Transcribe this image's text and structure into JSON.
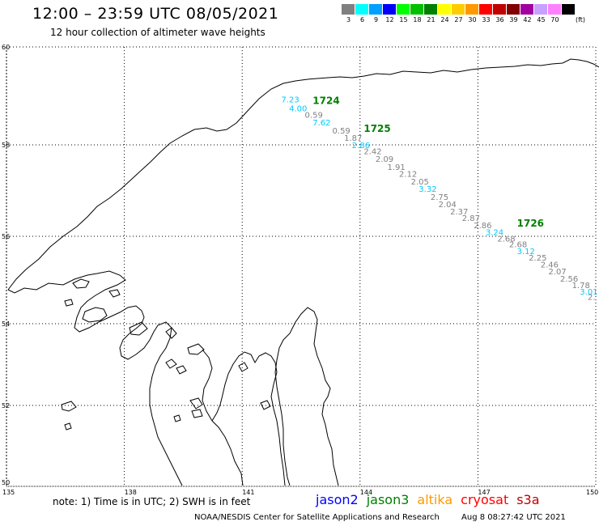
{
  "header": {
    "title": "12:00 – 23:59 UTC 08/05/2021",
    "subtitle": "12 hour collection of altimeter wave heights"
  },
  "legend_scale": {
    "unit": "(ft)",
    "bins": [
      {
        "label": "3",
        "color": "#808080"
      },
      {
        "label": "6",
        "color": "#00ffff"
      },
      {
        "label": "9",
        "color": "#00a0ff"
      },
      {
        "label": "12",
        "color": "#0000ff"
      },
      {
        "label": "15",
        "color": "#00ff00"
      },
      {
        "label": "18",
        "color": "#00c000"
      },
      {
        "label": "21",
        "color": "#008000"
      },
      {
        "label": "24",
        "color": "#ffff00"
      },
      {
        "label": "27",
        "color": "#ffcc00"
      },
      {
        "label": "30",
        "color": "#ff9900"
      },
      {
        "label": "33",
        "color": "#ff0000"
      },
      {
        "label": "36",
        "color": "#c00000"
      },
      {
        "label": "39",
        "color": "#800000"
      },
      {
        "label": "42",
        "color": "#a000a0"
      },
      {
        "label": "45",
        "color": "#c8a0ff"
      },
      {
        "label": "70",
        "color": "#ff80ff"
      },
      {
        "label": "",
        "color": "#000000"
      }
    ]
  },
  "map": {
    "lon_labels": [
      "135",
      "138",
      "141",
      "144",
      "147",
      "150"
    ],
    "lat_labels": [
      "60",
      "58",
      "56",
      "54",
      "52",
      "50"
    ],
    "pass_labels": [
      {
        "text": "1724",
        "lon": 143.0,
        "lat": 58.92,
        "color": "#008000"
      },
      {
        "text": "1725",
        "lon": 144.3,
        "lat": 58.35,
        "color": "#008000"
      },
      {
        "text": "1726",
        "lon": 148.2,
        "lat": 56.3,
        "color": "#008000"
      }
    ],
    "observations": [
      {
        "value": "7.23",
        "lon": 142.2,
        "lat": 58.93,
        "color": "#00c8ff"
      },
      {
        "value": "4.00",
        "lon": 142.4,
        "lat": 58.75,
        "color": "#00c8ff"
      },
      {
        "value": "0.59",
        "lon": 142.8,
        "lat": 58.62,
        "color": "#808080"
      },
      {
        "value": "7.62",
        "lon": 143.0,
        "lat": 58.46,
        "color": "#00c8ff"
      },
      {
        "value": "0.59",
        "lon": 143.5,
        "lat": 58.3,
        "color": "#808080"
      },
      {
        "value": "1.87",
        "lon": 143.8,
        "lat": 58.15,
        "color": "#808080"
      },
      {
        "value": "2.86",
        "lon": 144.0,
        "lat": 58.0,
        "color": "#00c8ff"
      },
      {
        "value": "2.42",
        "lon": 144.3,
        "lat": 57.87,
        "color": "#808080"
      },
      {
        "value": "2.09",
        "lon": 144.6,
        "lat": 57.7,
        "color": "#808080"
      },
      {
        "value": "1.91",
        "lon": 144.9,
        "lat": 57.52,
        "color": "#808080"
      },
      {
        "value": "2.12",
        "lon": 145.2,
        "lat": 57.37,
        "color": "#808080"
      },
      {
        "value": "2.05",
        "lon": 145.5,
        "lat": 57.2,
        "color": "#808080"
      },
      {
        "value": "3.32",
        "lon": 145.7,
        "lat": 57.04,
        "color": "#00c8ff"
      },
      {
        "value": "2.75",
        "lon": 146.0,
        "lat": 56.87,
        "color": "#808080"
      },
      {
        "value": "2.04",
        "lon": 146.2,
        "lat": 56.71,
        "color": "#808080"
      },
      {
        "value": "2.37",
        "lon": 146.5,
        "lat": 56.55,
        "color": "#808080"
      },
      {
        "value": "2.87",
        "lon": 146.8,
        "lat": 56.41,
        "color": "#808080"
      },
      {
        "value": "2.86",
        "lon": 147.1,
        "lat": 56.25,
        "color": "#808080"
      },
      {
        "value": "3.24",
        "lon": 147.4,
        "lat": 56.1,
        "color": "#00c8ff"
      },
      {
        "value": "2.68",
        "lon": 147.7,
        "lat": 55.95,
        "color": "#808080"
      },
      {
        "value": "2.68",
        "lon": 148.0,
        "lat": 55.82,
        "color": "#808080"
      },
      {
        "value": "3.12",
        "lon": 148.2,
        "lat": 55.67,
        "color": "#00c8ff"
      },
      {
        "value": "2.25",
        "lon": 148.5,
        "lat": 55.52,
        "color": "#808080"
      },
      {
        "value": "2.46",
        "lon": 148.8,
        "lat": 55.36,
        "color": "#808080"
      },
      {
        "value": "2.07",
        "lon": 149.0,
        "lat": 55.2,
        "color": "#808080"
      },
      {
        "value": "2.56",
        "lon": 149.3,
        "lat": 55.04,
        "color": "#808080"
      },
      {
        "value": "1.78",
        "lon": 149.6,
        "lat": 54.89,
        "color": "#808080"
      },
      {
        "value": "3.01",
        "lon": 149.8,
        "lat": 54.74,
        "color": "#00c8ff"
      },
      {
        "value": "2.",
        "lon": 150.0,
        "lat": 54.62,
        "color": "#808080"
      }
    ]
  },
  "note": "note:  1) Time is in UTC;  2) SWH is in feet",
  "missions": [
    {
      "name": "jason2",
      "color": "#0000ff"
    },
    {
      "name": "jason3",
      "color": "#008000"
    },
    {
      "name": "altika",
      "color": "#ff9900"
    },
    {
      "name": "cryosat",
      "color": "#ff0000"
    },
    {
      "name": "s3a",
      "color": "#c00000"
    }
  ],
  "footer": {
    "credit": "NOAA/NESDIS Center for Satellite Applications and Research",
    "timestamp": "Aug  8 08:27:42 UTC 2021"
  }
}
